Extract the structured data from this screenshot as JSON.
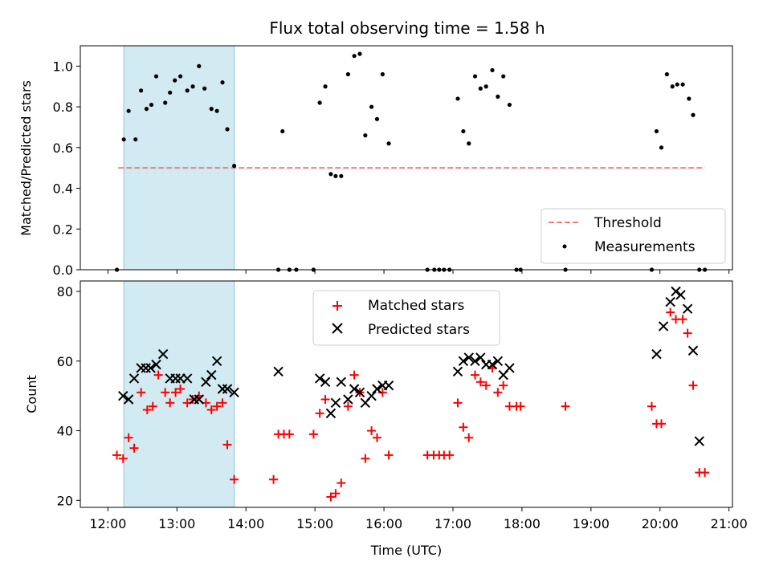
{
  "chart_data": [
    {
      "type": "scatter",
      "title": "Flux total observing time = 1.58 h",
      "ylabel": "Matched/Predicted stars",
      "xlabel": "",
      "xlim": [
        11.6,
        21.05
      ],
      "ylim": [
        0.0,
        1.1
      ],
      "grid": false,
      "legend_position": "lower-right",
      "highlight_span": [
        12.23,
        13.83
      ],
      "highlight_color": "#add8e6",
      "yticks": [
        "0.0",
        "0.2",
        "0.4",
        "0.6",
        "0.8",
        "1.0"
      ],
      "ytick_values": [
        0.0,
        0.2,
        0.4,
        0.6,
        0.8,
        1.0
      ],
      "threshold": {
        "name": "Threshold",
        "y": 0.5,
        "x_range": [
          12.15,
          20.65
        ],
        "color": "#f08080"
      },
      "series": [
        {
          "name": "Measurements",
          "color": "#000000",
          "x": [
            12.13,
            12.23,
            12.3,
            12.4,
            12.48,
            12.56,
            12.63,
            12.7,
            12.83,
            12.9,
            12.97,
            13.05,
            13.15,
            13.23,
            13.32,
            13.4,
            13.5,
            13.58,
            13.66,
            13.73,
            13.83,
            14.47,
            14.53,
            14.63,
            14.73,
            14.98,
            15.07,
            15.15,
            15.23,
            15.3,
            15.38,
            15.48,
            15.57,
            15.65,
            15.73,
            15.82,
            15.9,
            15.98,
            16.07,
            16.63,
            16.73,
            16.8,
            16.87,
            16.95,
            17.07,
            17.15,
            17.23,
            17.32,
            17.4,
            17.48,
            17.57,
            17.65,
            17.73,
            17.82,
            17.92,
            17.98,
            18.63,
            19.88,
            19.95,
            20.02,
            20.1,
            20.18,
            20.25,
            20.33,
            20.42,
            20.48,
            20.57,
            20.65
          ],
          "y": [
            0.0,
            0.64,
            0.78,
            0.64,
            0.88,
            0.79,
            0.81,
            0.95,
            0.82,
            0.87,
            0.93,
            0.95,
            0.88,
            0.9,
            1.0,
            0.89,
            0.79,
            0.78,
            0.92,
            0.69,
            0.51,
            0.0,
            0.68,
            0.0,
            0.0,
            0.0,
            0.82,
            0.9,
            0.47,
            0.46,
            0.46,
            0.96,
            1.05,
            1.06,
            0.66,
            0.8,
            0.74,
            0.96,
            0.62,
            0.0,
            0.0,
            0.0,
            0.0,
            0.0,
            0.84,
            0.68,
            0.62,
            0.95,
            0.89,
            0.9,
            0.98,
            0.85,
            0.95,
            0.81,
            0.0,
            0.0,
            0.0,
            0.0,
            0.68,
            0.6,
            0.96,
            0.9,
            0.91,
            0.91,
            0.84,
            0.76,
            0.0,
            0.0
          ]
        }
      ]
    },
    {
      "type": "scatter",
      "title": "",
      "ylabel": "Count",
      "xlabel": "Time (UTC)",
      "xlim": [
        11.6,
        21.05
      ],
      "ylim": [
        18,
        83
      ],
      "grid": false,
      "legend_position": "top-center",
      "highlight_span": [
        12.23,
        13.83
      ],
      "highlight_color": "#add8e6",
      "yticks": [
        "20",
        "40",
        "60",
        "80"
      ],
      "ytick_values": [
        20,
        40,
        60,
        80
      ],
      "xticks": [
        "12:00",
        "13:00",
        "14:00",
        "15:00",
        "16:00",
        "17:00",
        "18:00",
        "19:00",
        "20:00",
        "21:00"
      ],
      "xtick_values": [
        12,
        13,
        14,
        15,
        16,
        17,
        18,
        19,
        20,
        21
      ],
      "series": [
        {
          "name": "Matched stars",
          "marker": "plus",
          "color": "#ff0000",
          "x": [
            12.13,
            12.22,
            12.3,
            12.38,
            12.48,
            12.57,
            12.65,
            12.73,
            12.83,
            12.9,
            12.98,
            13.05,
            13.15,
            13.23,
            13.32,
            13.42,
            13.5,
            13.58,
            13.66,
            13.73,
            13.83,
            14.4,
            14.47,
            14.55,
            14.63,
            14.98,
            15.07,
            15.15,
            15.23,
            15.3,
            15.38,
            15.48,
            15.57,
            15.65,
            15.73,
            15.82,
            15.9,
            15.98,
            16.07,
            16.63,
            16.72,
            16.8,
            16.87,
            16.95,
            17.07,
            17.15,
            17.23,
            17.32,
            17.4,
            17.48,
            17.57,
            17.65,
            17.73,
            17.82,
            17.92,
            17.98,
            18.63,
            19.88,
            19.95,
            20.02,
            20.15,
            20.23,
            20.33,
            20.4,
            20.48,
            20.57,
            20.65
          ],
          "y": [
            33,
            32,
            38,
            35,
            51,
            46,
            47,
            56,
            51,
            48,
            51,
            52,
            48,
            49,
            50,
            48,
            46,
            47,
            48,
            36,
            26,
            26,
            39,
            39,
            39,
            39,
            45,
            49,
            21,
            22,
            25,
            47,
            56,
            51,
            32,
            40,
            38,
            51,
            33,
            33,
            33,
            33,
            33,
            33,
            48,
            41,
            38,
            56,
            54,
            53,
            58,
            51,
            53,
            47,
            47,
            47,
            47,
            47,
            42,
            42,
            74,
            72,
            72,
            68,
            53,
            28,
            28
          ]
        },
        {
          "name": "Predicted stars",
          "marker": "x",
          "color": "#000000",
          "x": [
            12.22,
            12.3,
            12.38,
            12.48,
            12.55,
            12.62,
            12.7,
            12.8,
            12.9,
            12.98,
            13.05,
            13.15,
            13.25,
            13.32,
            13.42,
            13.5,
            13.58,
            13.66,
            13.73,
            13.83,
            14.47,
            15.07,
            15.15,
            15.23,
            15.3,
            15.38,
            15.48,
            15.57,
            15.65,
            15.73,
            15.82,
            15.9,
            15.98,
            16.07,
            17.07,
            17.15,
            17.23,
            17.32,
            17.4,
            17.48,
            17.57,
            17.65,
            17.73,
            17.82,
            19.95,
            20.05,
            20.15,
            20.23,
            20.3,
            20.4,
            20.48,
            20.57
          ],
          "y": [
            50,
            49,
            55,
            58,
            58,
            58,
            59,
            62,
            55,
            55,
            55,
            55,
            49,
            49,
            54,
            56,
            60,
            52,
            52,
            51,
            57,
            55,
            54,
            45,
            48,
            54,
            49,
            52,
            51,
            48,
            50,
            52,
            53,
            53,
            57,
            60,
            61,
            60,
            61,
            59,
            59,
            60,
            56,
            58,
            62,
            70,
            77,
            80,
            79,
            75,
            63,
            37
          ]
        }
      ]
    }
  ]
}
